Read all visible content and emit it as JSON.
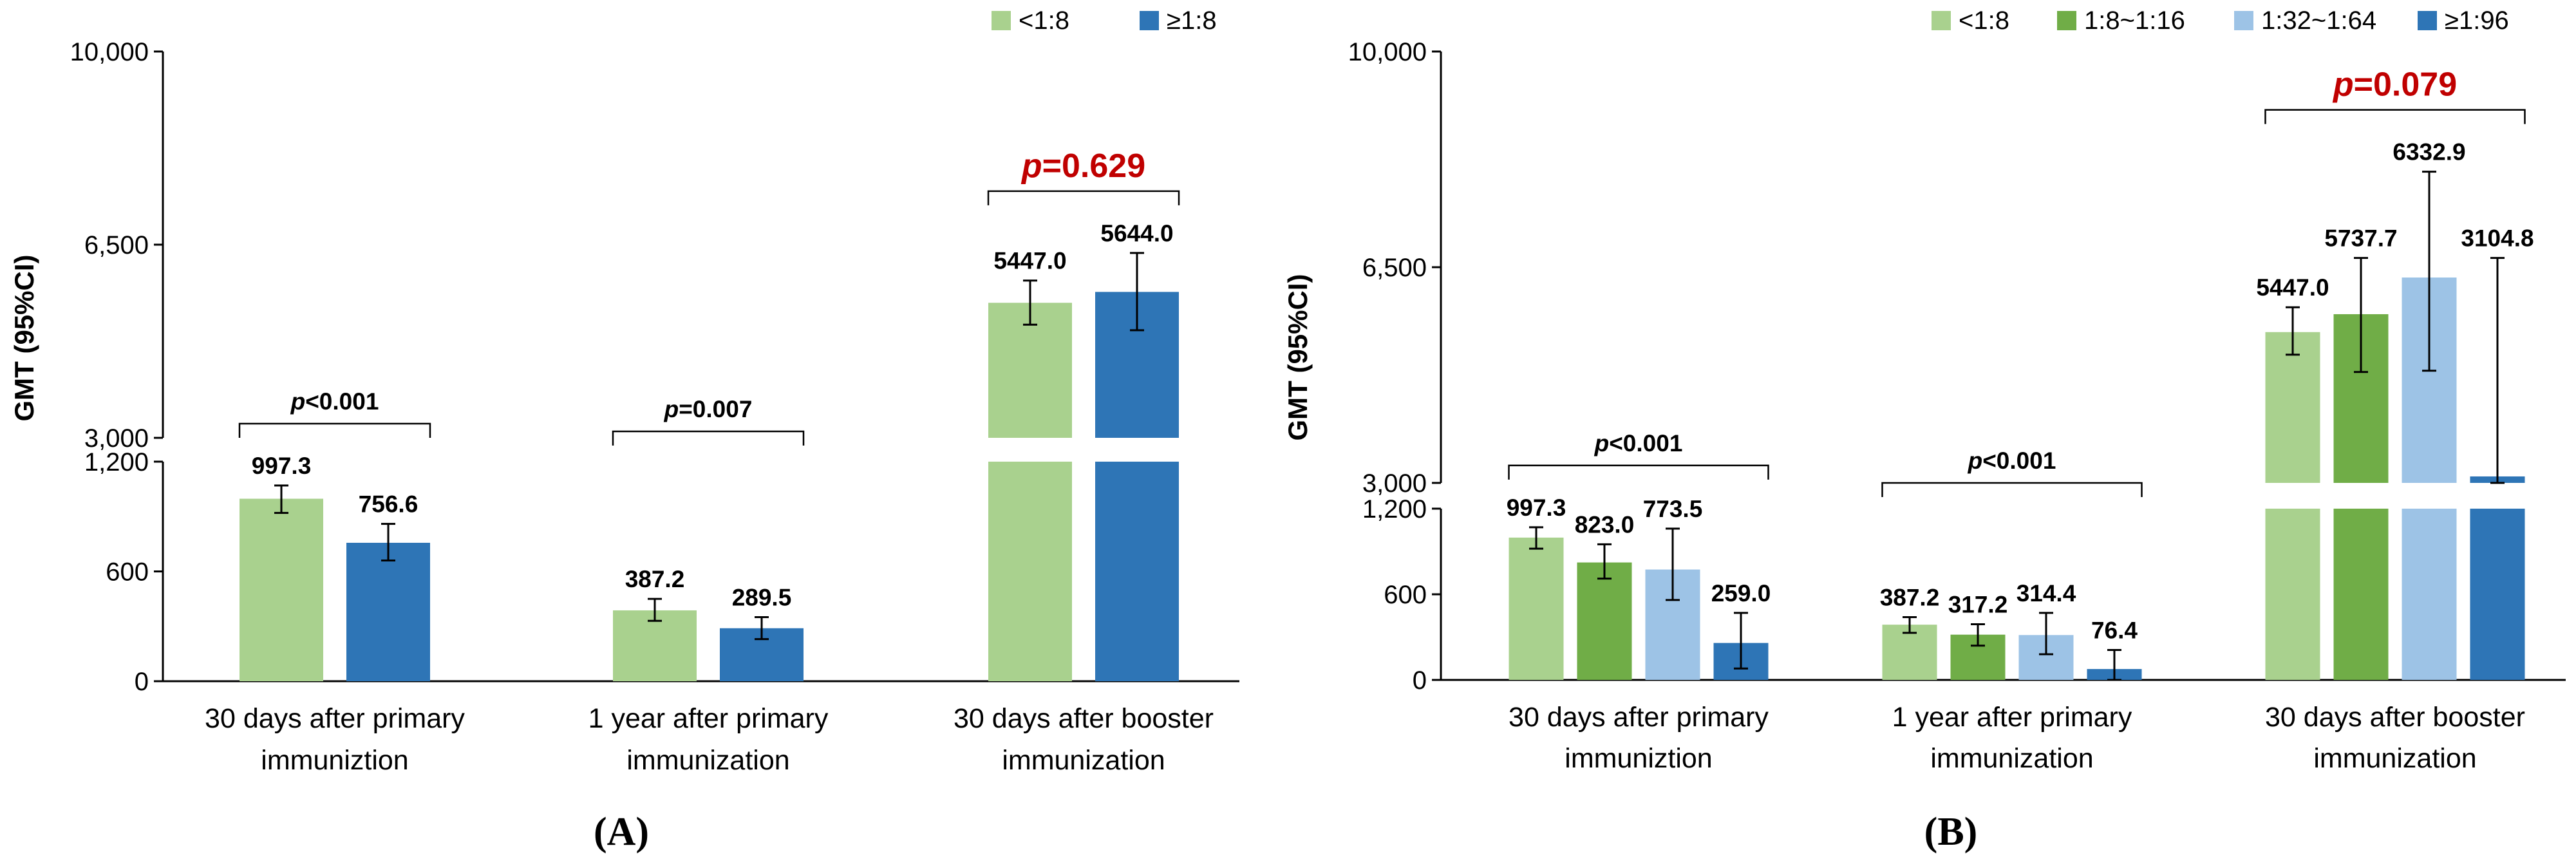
{
  "chart_data": [
    {
      "type": "bar",
      "panel_label": "(A)",
      "ylabel": "GMT  (95%CI)",
      "categories": [
        [
          "30 days after primary",
          "immuniztion"
        ],
        [
          "1 year after primary",
          "immunization"
        ],
        [
          "30 days after booster",
          "immunization"
        ]
      ],
      "y_axis_broken": true,
      "y_lower": {
        "range": [
          0,
          1200
        ],
        "ticks": [
          0,
          600,
          1200
        ],
        "tick_labels": [
          "0",
          "600",
          "1,200"
        ]
      },
      "y_upper": {
        "range": [
          3000,
          10000
        ],
        "ticks": [
          3000,
          6500,
          10000
        ],
        "tick_labels": [
          "3,000",
          "6,500",
          "10,000"
        ]
      },
      "legend": [
        "<1:8",
        "≥1:8"
      ],
      "series": [
        {
          "name": "<1:8",
          "color": "#a9d18e",
          "values": [
            997.3,
            387.2,
            5447.0
          ],
          "labels": [
            "997.3",
            "387.2",
            "5447.0"
          ],
          "ci_low": [
            920,
            330,
            5050
          ],
          "ci_high": [
            1070,
            450,
            5850
          ]
        },
        {
          "name": "≥1:8",
          "color": "#2e75b6",
          "values": [
            756.6,
            289.5,
            5644.0
          ],
          "labels": [
            "756.6",
            "289.5",
            "5644.0"
          ],
          "ci_low": [
            660,
            230,
            4950
          ],
          "ci_high": [
            860,
            350,
            6350
          ]
        }
      ],
      "pvalues": [
        {
          "category": 0,
          "prefix": "p",
          "text": "<0.001",
          "highlight": false
        },
        {
          "category": 1,
          "prefix": "p",
          "text": "=0.007",
          "highlight": false
        },
        {
          "category": 2,
          "prefix": "p",
          "text": "=0.629",
          "highlight": true
        }
      ]
    },
    {
      "type": "bar",
      "panel_label": "(B)",
      "ylabel": "GMT  (95%CI)",
      "categories": [
        [
          "30 days after primary",
          "immuniztion"
        ],
        [
          "1 year after primary",
          "immunization"
        ],
        [
          "30 days after booster",
          "immunization"
        ]
      ],
      "y_axis_broken": true,
      "y_lower": {
        "range": [
          0,
          1200
        ],
        "ticks": [
          0,
          600,
          1200
        ],
        "tick_labels": [
          "0",
          "600",
          "1,200"
        ]
      },
      "y_upper": {
        "range": [
          3000,
          10000
        ],
        "ticks": [
          3000,
          6500,
          10000
        ],
        "tick_labels": [
          "3,000",
          "6,500",
          "10,000"
        ]
      },
      "legend": [
        "<1:8",
        "1:8~1:16",
        "1:32~1:64",
        "≥1:96"
      ],
      "series": [
        {
          "name": "<1:8",
          "color": "#a9d18e",
          "values": [
            997.3,
            387.2,
            5447.0
          ],
          "labels": [
            "997.3",
            "387.2",
            "5447.0"
          ],
          "ci_low": [
            920,
            330,
            5080
          ],
          "ci_high": [
            1070,
            440,
            5850
          ]
        },
        {
          "name": "1:8~1:16",
          "color": "#70ad47",
          "values": [
            823.0,
            317.2,
            5737.7
          ],
          "labels": [
            "823.0",
            "317.2",
            "5737.7"
          ],
          "ci_low": [
            710,
            240,
            4800
          ],
          "ci_high": [
            950,
            390,
            6650
          ]
        },
        {
          "name": "1:32~1:64",
          "color": "#9dc3e6",
          "values": [
            773.5,
            314.4,
            6332.9
          ],
          "labels": [
            "773.5",
            "314.4",
            "6332.9"
          ],
          "ci_low": [
            560,
            180,
            4820
          ],
          "ci_high": [
            1060,
            470,
            8050
          ]
        },
        {
          "name": "≥1:96",
          "color": "#2e75b6",
          "values": [
            259.0,
            76.4,
            3104.8
          ],
          "labels": [
            "259.0",
            "76.4",
            "3104.8"
          ],
          "ci_low": [
            80,
            0,
            3000
          ],
          "ci_high": [
            470,
            210,
            6650
          ]
        }
      ],
      "pvalues": [
        {
          "category": 0,
          "prefix": "p",
          "text": "<0.001",
          "highlight": false
        },
        {
          "category": 1,
          "prefix": "p",
          "text": "<0.001",
          "highlight": false
        },
        {
          "category": 2,
          "prefix": "p",
          "text": "=0.079",
          "highlight": true
        }
      ]
    }
  ]
}
